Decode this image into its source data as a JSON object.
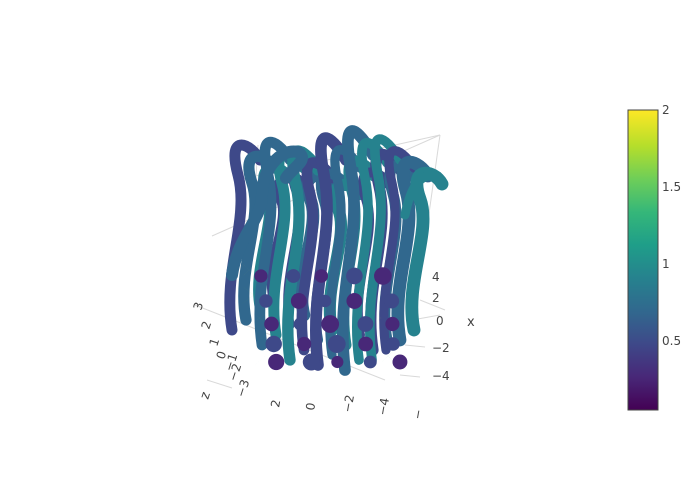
{
  "chart_data": {
    "type": "streamtube",
    "colorscale": "Viridis",
    "colorbar": {
      "range": [
        0.05,
        2.0
      ],
      "ticks": [
        {
          "value": 2,
          "label": "2"
        },
        {
          "value": 1.5,
          "label": "1.5"
        },
        {
          "value": 1,
          "label": "1"
        },
        {
          "value": 0.5,
          "label": "0.5"
        }
      ]
    },
    "axes": {
      "x": {
        "title": "x",
        "ticks": [
          "4",
          "2",
          "0",
          "−2",
          "−4"
        ]
      },
      "y": {
        "title": "",
        "ticks": [
          "2",
          "0",
          "−2",
          "−4",
          "−"
        ]
      },
      "z": {
        "title": "z",
        "ticks": [
          "3",
          "2",
          "1",
          "0",
          "−1",
          "−2",
          "−3"
        ]
      }
    },
    "stream_magnitude_range": [
      0.05,
      2.0
    ]
  },
  "colors": {
    "viridis": [
      "#440154",
      "#482878",
      "#3e4989",
      "#31688e",
      "#26828e",
      "#1f9e89",
      "#35b779",
      "#6ece58",
      "#b5de2b",
      "#fde725"
    ]
  }
}
